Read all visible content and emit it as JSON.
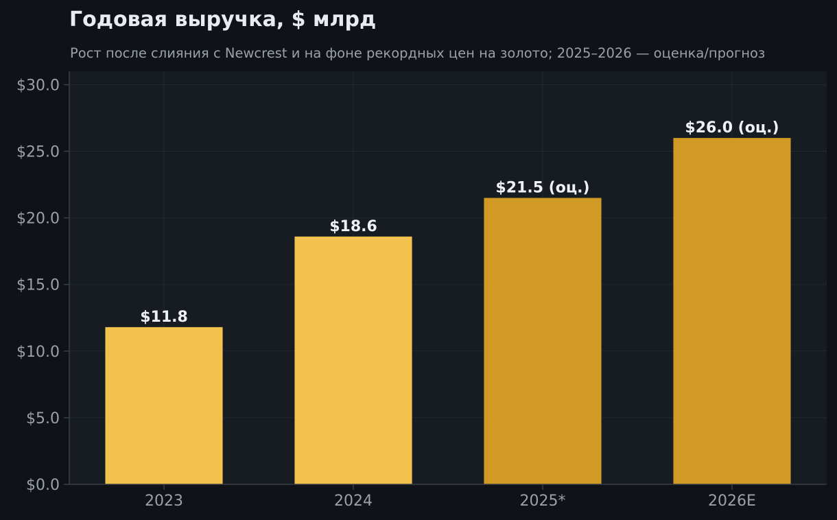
{
  "chart_data": {
    "type": "bar",
    "title": "Годовая выручка, $ млрд",
    "subtitle": "Рост после слияния с Newcrest и на фоне рекордных цен на золото; 2025–2026 — оценка/прогноз",
    "xlabel": "",
    "ylabel": "",
    "categories": [
      "2023",
      "2024",
      "2025*",
      "2026E"
    ],
    "values": [
      11.8,
      18.6,
      21.5,
      26.0
    ],
    "data_labels": [
      "$11.8",
      "$18.6",
      "$21.5 (оц.)",
      "$26.0 (оц.)"
    ],
    "bar_colors": [
      "#f2c14e",
      "#f2c14e",
      "#d19a24",
      "#d19a24"
    ],
    "ylim": [
      0,
      31
    ],
    "y_ticks": [
      0,
      5,
      10,
      15,
      20,
      25,
      30
    ],
    "y_tick_labels": [
      "$0.0",
      "$5.0",
      "$10.0",
      "$15.0",
      "$20.0",
      "$25.0",
      "$30.0"
    ],
    "grid": true,
    "legend": "none"
  },
  "colors": {
    "page_background": "#0f1318",
    "plot_background": "#171b22",
    "grid": "#232831",
    "axis": "#3a3f47",
    "text_primary": "#e8ecf0",
    "text_secondary": "#9aa1a9"
  }
}
